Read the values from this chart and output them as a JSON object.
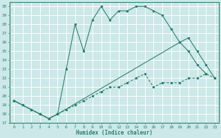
{
  "xlabel": "Humidex (Indice chaleur)",
  "bg_color": "#cce8e8",
  "grid_color": "#ffffff",
  "line_color": "#2a7f6f",
  "xlim": [
    -0.5,
    23.5
  ],
  "ylim": [
    17,
    30.5
  ],
  "xticks": [
    0,
    1,
    2,
    3,
    4,
    5,
    6,
    7,
    8,
    9,
    10,
    11,
    12,
    13,
    14,
    15,
    16,
    17,
    18,
    19,
    20,
    21,
    22,
    23
  ],
  "yticks": [
    17,
    18,
    19,
    20,
    21,
    22,
    23,
    24,
    25,
    26,
    27,
    28,
    29,
    30
  ],
  "line1_x": [
    0,
    1,
    2,
    3,
    4,
    5,
    6,
    7,
    8,
    9,
    10,
    11,
    12,
    13,
    14,
    15,
    16,
    17,
    18,
    19,
    20,
    21,
    22
  ],
  "line1_y": [
    19.5,
    19.0,
    18.5,
    18.0,
    17.5,
    18.0,
    23.0,
    28.0,
    25.0,
    28.5,
    30.0,
    28.5,
    29.5,
    29.5,
    30.0,
    30.0,
    29.5,
    29.0,
    27.5,
    26.0,
    25.0,
    23.5,
    22.5
  ],
  "line2_x": [
    0,
    1,
    2,
    3,
    4,
    5,
    6,
    7,
    8,
    9,
    10,
    11,
    12,
    13,
    14,
    15,
    16,
    17,
    18,
    19,
    20,
    21,
    22,
    23
  ],
  "line2_y": [
    19.5,
    19.0,
    18.5,
    18.0,
    17.5,
    18.0,
    18.5,
    19.0,
    19.5,
    20.0,
    20.5,
    21.0,
    21.0,
    21.5,
    22.0,
    22.5,
    21.0,
    21.5,
    21.5,
    21.5,
    22.0,
    22.0,
    22.5,
    22.0
  ],
  "line3_x": [
    0,
    2,
    3,
    4,
    5,
    19,
    20,
    21,
    22,
    23
  ],
  "line3_y": [
    19.5,
    18.5,
    18.0,
    17.5,
    18.0,
    26.0,
    26.5,
    25.0,
    23.5,
    22.0
  ]
}
